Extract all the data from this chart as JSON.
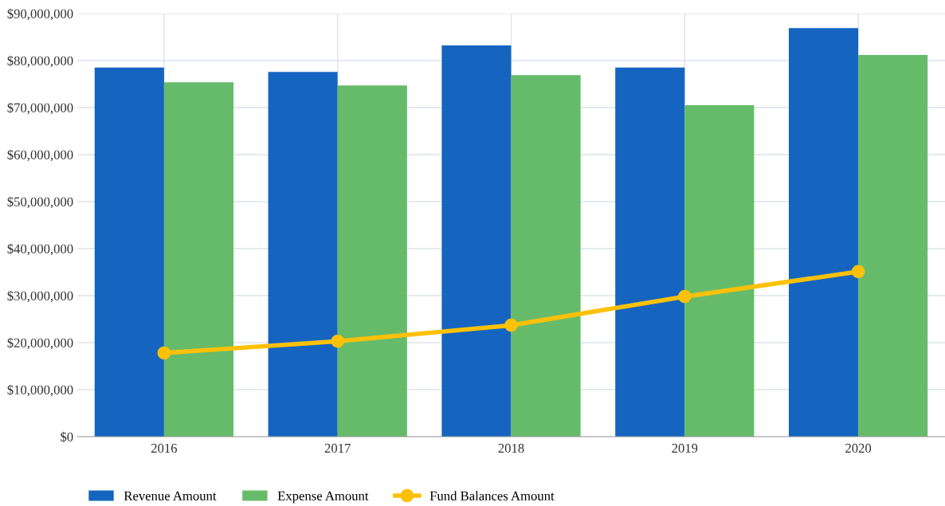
{
  "chart_data": {
    "type": "bar",
    "categories": [
      "2016",
      "2017",
      "2018",
      "2019",
      "2020"
    ],
    "series": [
      {
        "name": "Revenue Amount",
        "color": "#1565c0",
        "values": [
          78500000,
          77600000,
          83200000,
          78500000,
          86900000
        ]
      },
      {
        "name": "Expense Amount",
        "color": "#66bb6a",
        "values": [
          75400000,
          74700000,
          76900000,
          70500000,
          81200000
        ]
      },
      {
        "name": "Fund Balances Amount",
        "type": "line",
        "color": "#ffc107",
        "marker": "circle",
        "values": [
          17800000,
          20300000,
          23700000,
          29800000,
          35100000
        ]
      }
    ],
    "ylim": [
      0,
      90000000
    ],
    "yticks": [
      {
        "value": 0,
        "label": "$0"
      },
      {
        "value": 10000000,
        "label": "$10,000,000"
      },
      {
        "value": 20000000,
        "label": "$20,000,000"
      },
      {
        "value": 30000000,
        "label": "$30,000,000"
      },
      {
        "value": 40000000,
        "label": "$40,000,000"
      },
      {
        "value": 50000000,
        "label": "$50,000,000"
      },
      {
        "value": 60000000,
        "label": "$60,000,000"
      },
      {
        "value": 70000000,
        "label": "$70,000,000"
      },
      {
        "value": 80000000,
        "label": "$80,000,000"
      },
      {
        "value": 90000000,
        "label": "$90,000,000"
      }
    ],
    "grid": true,
    "legend": "bottom"
  }
}
